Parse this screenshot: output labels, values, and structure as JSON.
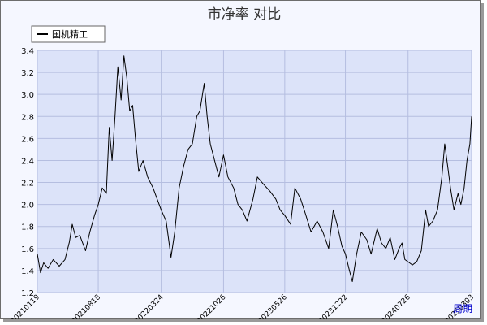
{
  "chart_data": {
    "type": "line",
    "title": "市净率  对比",
    "xlabel": "",
    "ylabel": "",
    "ylim": [
      1.2,
      3.4
    ],
    "y_ticks": [
      "1.2",
      "1.4",
      "1.6",
      "1.8",
      "2.0",
      "2.2",
      "2.4",
      "2.6",
      "2.8",
      "3.0",
      "3.2",
      "3.4"
    ],
    "x_start": "20210119",
    "x_end": "20250303",
    "x_ticks": [
      "20210119",
      "20210818",
      "20220324",
      "20221026",
      "20230526",
      "20231222",
      "20240726",
      "20250303"
    ],
    "grid": true,
    "legend_position": "top-left",
    "series": [
      {
        "name": "国机精工",
        "color": "#000000",
        "points": [
          [
            "20210119",
            1.55
          ],
          [
            "20210130",
            1.38
          ],
          [
            "20210210",
            1.47
          ],
          [
            "20210225",
            1.42
          ],
          [
            "20210315",
            1.5
          ],
          [
            "20210405",
            1.44
          ],
          [
            "20210425",
            1.5
          ],
          [
            "20210510",
            1.66
          ],
          [
            "20210520",
            1.82
          ],
          [
            "20210601",
            1.7
          ],
          [
            "20210615",
            1.72
          ],
          [
            "20210705",
            1.58
          ],
          [
            "20210720",
            1.75
          ],
          [
            "20210805",
            1.9
          ],
          [
            "20210818",
            2.0
          ],
          [
            "20210901",
            2.15
          ],
          [
            "20210915",
            2.1
          ],
          [
            "20210925",
            2.7
          ],
          [
            "20211005",
            2.4
          ],
          [
            "20211015",
            2.8
          ],
          [
            "20211025",
            3.25
          ],
          [
            "20211105",
            2.95
          ],
          [
            "20211115",
            3.35
          ],
          [
            "20211125",
            3.15
          ],
          [
            "20211205",
            2.85
          ],
          [
            "20211215",
            2.9
          ],
          [
            "20211225",
            2.6
          ],
          [
            "20220105",
            2.3
          ],
          [
            "20220120",
            2.4
          ],
          [
            "20220205",
            2.25
          ],
          [
            "20220224",
            2.15
          ],
          [
            "20220310",
            2.05
          ],
          [
            "20220324",
            1.95
          ],
          [
            "20220410",
            1.85
          ],
          [
            "20220427",
            1.52
          ],
          [
            "20220510",
            1.75
          ],
          [
            "20220525",
            2.15
          ],
          [
            "20220610",
            2.35
          ],
          [
            "20220625",
            2.5
          ],
          [
            "20220710",
            2.55
          ],
          [
            "20220725",
            2.8
          ],
          [
            "20220805",
            2.85
          ],
          [
            "20220820",
            3.1
          ],
          [
            "20220830",
            2.8
          ],
          [
            "20220910",
            2.55
          ],
          [
            "20220925",
            2.4
          ],
          [
            "20221010",
            2.25
          ],
          [
            "20221026",
            2.45
          ],
          [
            "20221110",
            2.25
          ],
          [
            "20221130",
            2.15
          ],
          [
            "20221215",
            2.0
          ],
          [
            "20221230",
            1.95
          ],
          [
            "20230115",
            1.85
          ],
          [
            "20230205",
            2.05
          ],
          [
            "20230220",
            2.25
          ],
          [
            "20230315",
            2.18
          ],
          [
            "20230405",
            2.12
          ],
          [
            "20230425",
            2.05
          ],
          [
            "20230510",
            1.95
          ],
          [
            "20230526",
            1.9
          ],
          [
            "20230615",
            1.82
          ],
          [
            "20230630",
            2.15
          ],
          [
            "20230720",
            2.05
          ],
          [
            "20230805",
            1.92
          ],
          [
            "20230825",
            1.75
          ],
          [
            "20230915",
            1.85
          ],
          [
            "20231005",
            1.75
          ],
          [
            "20231025",
            1.6
          ],
          [
            "20231110",
            1.95
          ],
          [
            "20231125",
            1.8
          ],
          [
            "20231210",
            1.62
          ],
          [
            "20231222",
            1.55
          ],
          [
            "20240105",
            1.4
          ],
          [
            "20240115",
            1.3
          ],
          [
            "20240130",
            1.55
          ],
          [
            "20240215",
            1.75
          ],
          [
            "20240305",
            1.68
          ],
          [
            "20240320",
            1.55
          ],
          [
            "20240410",
            1.78
          ],
          [
            "20240425",
            1.65
          ],
          [
            "20240510",
            1.6
          ],
          [
            "20240525",
            1.7
          ],
          [
            "20240610",
            1.5
          ],
          [
            "20240625",
            1.6
          ],
          [
            "20240705",
            1.65
          ],
          [
            "20240715",
            1.5
          ],
          [
            "20240726",
            1.48
          ],
          [
            "20240810",
            1.45
          ],
          [
            "20240825",
            1.48
          ],
          [
            "20240910",
            1.58
          ],
          [
            "20240925",
            1.95
          ],
          [
            "20241005",
            1.8
          ],
          [
            "20241020",
            1.85
          ],
          [
            "20241105",
            1.95
          ],
          [
            "20241120",
            2.25
          ],
          [
            "20241130",
            2.55
          ],
          [
            "20241210",
            2.35
          ],
          [
            "20241220",
            2.15
          ],
          [
            "20250101",
            1.95
          ],
          [
            "20250115",
            2.1
          ],
          [
            "20250125",
            2.0
          ],
          [
            "20250205",
            2.15
          ],
          [
            "20250215",
            2.4
          ],
          [
            "20250225",
            2.55
          ],
          [
            "20250303",
            2.8
          ]
        ]
      }
    ]
  },
  "period_link": "周期"
}
